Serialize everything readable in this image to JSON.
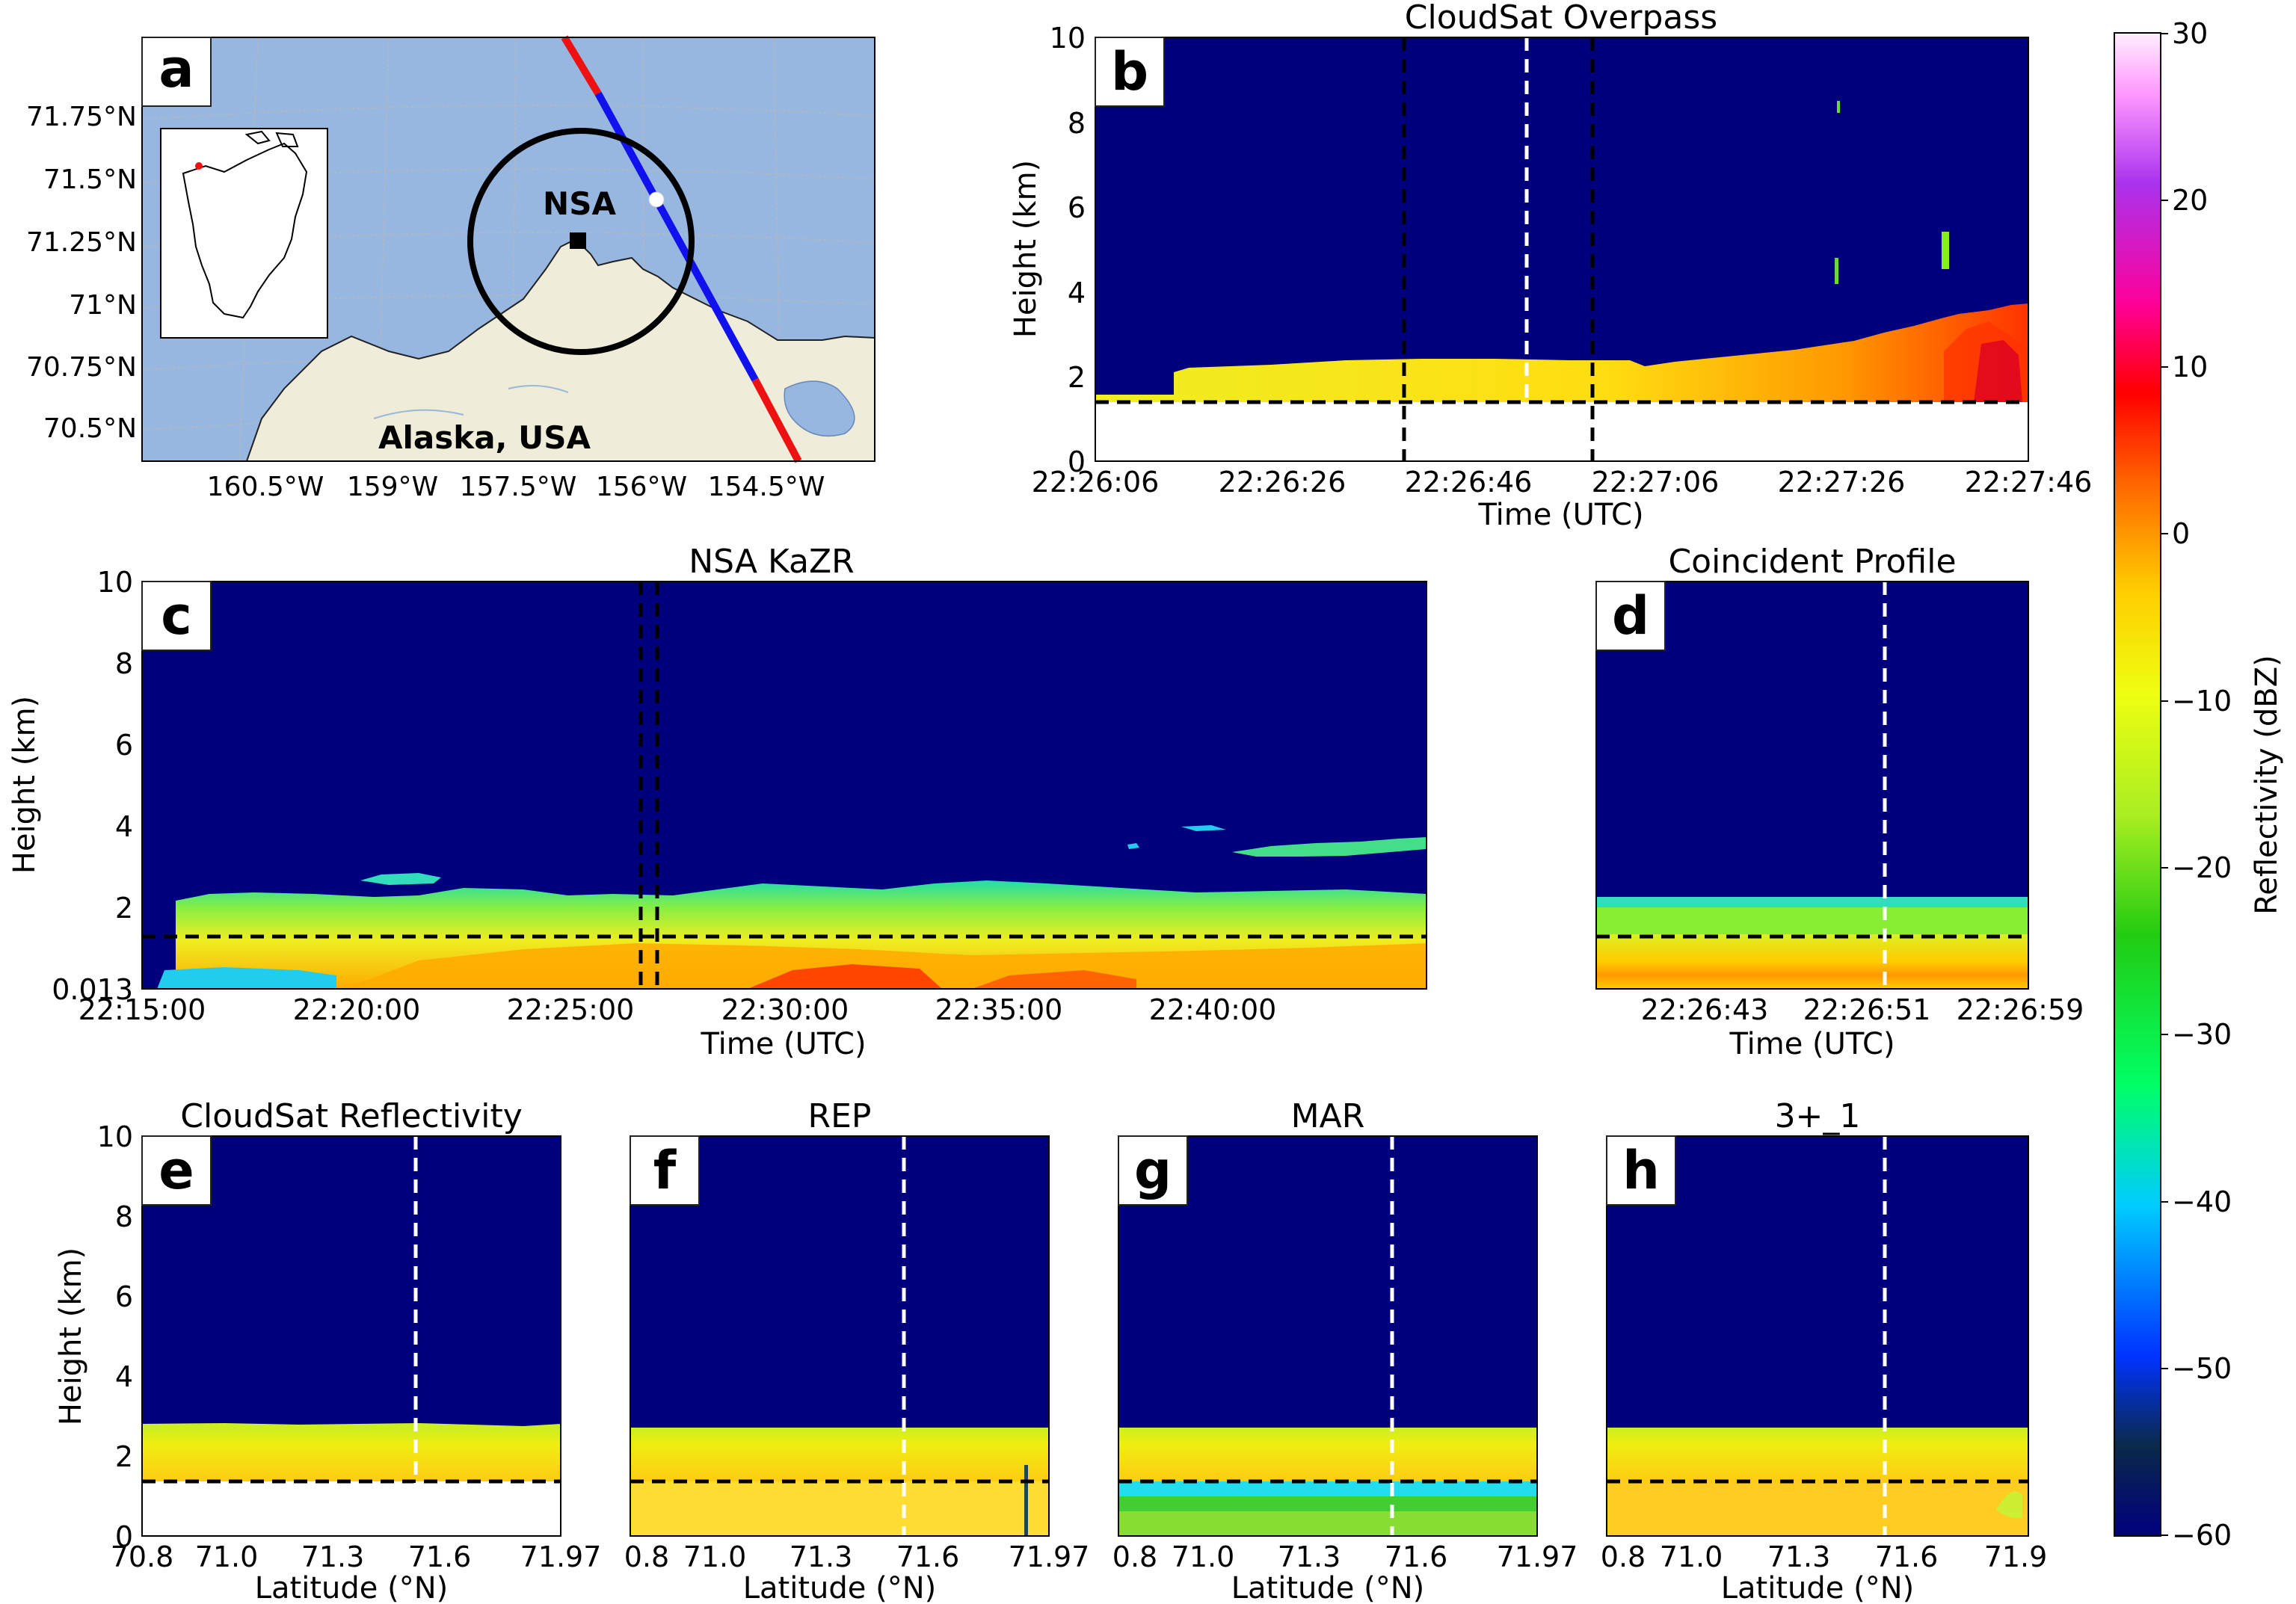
{
  "colors": {
    "background_navy": "#00007d",
    "clear_air_white": "#ffffff",
    "ocean_blue": "#97b6e0",
    "land_beige": "#efecd9",
    "track_red": "#ee1111",
    "track_blue": "#1111ee",
    "ref_line_black": "#000000",
    "ref_line_white": "#ffffff"
  },
  "colorbar": {
    "label": "Reflectivity (dBZ)",
    "ticks": [
      "30",
      "20",
      "10",
      "0",
      "−10",
      "−20",
      "−30",
      "−40",
      "−50",
      "−60"
    ],
    "range": [
      -60,
      30
    ],
    "colormap": "gist_ncar_like"
  },
  "panel_a": {
    "letter": "a",
    "lat_labels": [
      "71.75°N",
      "71.5°N",
      "71.25°N",
      "71°N",
      "70.75°N",
      "70.5°N"
    ],
    "lon_labels": [
      "160.5°W",
      "159°W",
      "157.5°W",
      "156°W",
      "154.5°W"
    ],
    "site_label": "NSA",
    "region_label": "Alaska, USA"
  },
  "panel_b": {
    "letter": "b",
    "title": "CloudSat Overpass",
    "xlabel": "Time (UTC)",
    "ylabel": "Height (km)",
    "xticks": [
      "22:26:06",
      "22:26:26",
      "22:26:46",
      "22:27:06",
      "22:27:26",
      "22:27:46"
    ],
    "yticks": [
      "0",
      "2",
      "4",
      "6",
      "8",
      "10"
    ]
  },
  "panel_c": {
    "letter": "c",
    "title": "NSA KaZR",
    "xlabel": "Time (UTC)",
    "ylabel": "Height (km)",
    "xticks": [
      "22:15:00",
      "22:20:00",
      "22:25:00",
      "22:30:00",
      "22:35:00",
      "22:40:00"
    ],
    "yticks": [
      "0.013",
      "2",
      "4",
      "6",
      "8",
      "10"
    ]
  },
  "panel_d": {
    "letter": "d",
    "title": "Coincident Profile",
    "xlabel": "Time (UTC)",
    "xticks": [
      "22:26:43",
      "22:26:51",
      "22:26:59"
    ]
  },
  "panel_e": {
    "letter": "e",
    "title": "CloudSat Reflectivity",
    "xlabel": "Latitude (°N)",
    "ylabel": "Height (km)",
    "xticks": [
      "70.8",
      "71.0",
      "71.3",
      "71.6",
      "71.97"
    ],
    "yticks": [
      "0",
      "2",
      "4",
      "6",
      "8",
      "10"
    ]
  },
  "panel_f": {
    "letter": "f",
    "title": "REP",
    "xlabel": "Latitude (°N)",
    "xticks": [
      "0.8",
      "71.0",
      "71.3",
      "71.6",
      "71.97"
    ]
  },
  "panel_g": {
    "letter": "g",
    "title": "MAR",
    "xlabel": "Latitude (°N)",
    "xticks": [
      "0.8",
      "71.0",
      "71.3",
      "71.6",
      "71.97"
    ]
  },
  "panel_h": {
    "letter": "h",
    "title": "3+_1",
    "xlabel": "Latitude (°N)",
    "xticks": [
      "0.8",
      "71.0",
      "71.3",
      "71.6",
      "71.9"
    ]
  },
  "chart_data": [
    {
      "type": "heatmap",
      "panel": "b",
      "title": "CloudSat Overpass",
      "xlabel": "Time (UTC)",
      "ylabel": "Height (km)",
      "ylim": [
        0,
        10
      ],
      "x_range": [
        "22:26:06",
        "22:27:46"
      ],
      "cloud_layers": [
        {
          "from": "22:26:06",
          "to": "22:26:13",
          "base_km": 1.4,
          "top_km": 1.5
        },
        {
          "from": "22:26:13",
          "to": "22:27:06",
          "base_km": 1.4,
          "top_km": 2.4,
          "dbz_range": [
            -25,
            -12
          ]
        },
        {
          "from": "22:27:06",
          "to": "22:27:46",
          "base_km": 1.4,
          "top_km": 3.8,
          "dbz_range": [
            -20,
            3
          ]
        }
      ],
      "isolated_echoes": [
        {
          "time": "22:27:26",
          "height_km": 8.4
        },
        {
          "time": "22:27:26",
          "height_km": 5.5
        },
        {
          "time": "22:27:38",
          "height_km": 6.0
        }
      ],
      "reference_lines": {
        "surface_height_km": 1.4,
        "vertical_black": [
          "22:26:50",
          "22:27:06"
        ],
        "vertical_white": [
          "22:26:58"
        ]
      }
    },
    {
      "type": "heatmap",
      "panel": "c",
      "title": "NSA KaZR",
      "xlabel": "Time (UTC)",
      "ylabel": "Height (km)",
      "ylim": [
        0.013,
        10
      ],
      "x_range": [
        "22:15:00",
        "22:45:00"
      ],
      "cloud_layers": [
        {
          "from": "22:16:00",
          "to": "22:45:00",
          "base_km": 0.013,
          "top_km": 2.4,
          "dbz_range": [
            -35,
            5
          ]
        },
        {
          "from": "22:19:30",
          "to": "22:20:30",
          "base_km": 2.7,
          "top_km": 2.9
        },
        {
          "from": "22:38:30",
          "to": "22:45:00",
          "base_km": 3.2,
          "top_km": 3.6
        }
      ],
      "reference_lines": {
        "horizontal_km": 1.3,
        "vertical_black": [
          "22:26:43",
          "22:26:59"
        ]
      }
    },
    {
      "type": "heatmap",
      "panel": "d",
      "title": "Coincident Profile",
      "xlabel": "Time (UTC)",
      "ylim": [
        0,
        10
      ],
      "x_range": [
        "22:26:40",
        "22:27:00"
      ],
      "profile": [
        {
          "base_km": 1.9,
          "top_km": 2.2,
          "dbz": -37
        },
        {
          "base_km": 1.3,
          "top_km": 1.9,
          "dbz": -20
        },
        {
          "base_km": 0.0,
          "top_km": 1.3,
          "dbz": -8
        }
      ],
      "reference_lines": {
        "horizontal_km": 1.3,
        "vertical_white": [
          "22:26:53"
        ]
      }
    },
    {
      "type": "heatmap",
      "panel": "e",
      "title": "CloudSat Reflectivity",
      "xlabel": "Latitude (°N)",
      "ylabel": "Height (km)",
      "xlim": [
        70.8,
        71.97
      ],
      "ylim": [
        0,
        10
      ],
      "layers": [
        {
          "base_km": 1.3,
          "top_km": 2.5,
          "dbz_range": [
            -15,
            -8
          ]
        },
        {
          "base_km": 0,
          "top_km": 1.3,
          "fill": "clear"
        }
      ],
      "reference_lines": {
        "horizontal_km": 1.3,
        "vertical_white_lat": 71.55
      }
    },
    {
      "type": "heatmap",
      "panel": "f",
      "title": "REP",
      "xlabel": "Latitude (°N)",
      "xlim": [
        70.8,
        71.97
      ],
      "ylim": [
        0,
        10
      ],
      "layers": [
        {
          "base_km": 1.3,
          "top_km": 2.5,
          "dbz_range": [
            -15,
            -8
          ]
        },
        {
          "base_km": 0,
          "top_km": 1.3,
          "dbz_range": [
            -12,
            -6
          ]
        }
      ],
      "reference_lines": {
        "horizontal_km": 1.3,
        "vertical_white_lat": 71.55
      }
    },
    {
      "type": "heatmap",
      "panel": "g",
      "title": "MAR",
      "xlabel": "Latitude (°N)",
      "xlim": [
        70.8,
        71.97
      ],
      "ylim": [
        0,
        10
      ],
      "layers": [
        {
          "base_km": 1.3,
          "top_km": 2.5,
          "dbz_range": [
            -15,
            -8
          ]
        },
        {
          "base_km": 0.9,
          "top_km": 1.3,
          "dbz": -38
        },
        {
          "base_km": 0,
          "top_km": 0.9,
          "dbz_range": [
            -28,
            -22
          ]
        }
      ],
      "reference_lines": {
        "horizontal_km": 1.3,
        "vertical_white_lat": 71.55
      }
    },
    {
      "type": "heatmap",
      "panel": "h",
      "title": "3+_1",
      "xlabel": "Latitude (°N)",
      "xlim": [
        70.8,
        71.9
      ],
      "ylim": [
        0,
        10
      ],
      "layers": [
        {
          "base_km": 1.3,
          "top_km": 2.5,
          "dbz_range": [
            -15,
            -8
          ]
        },
        {
          "base_km": 0,
          "top_km": 1.3,
          "dbz_range": [
            -10,
            -5
          ]
        }
      ],
      "reference_lines": {
        "horizontal_km": 1.3,
        "vertical_white_lat": 71.55
      }
    }
  ]
}
